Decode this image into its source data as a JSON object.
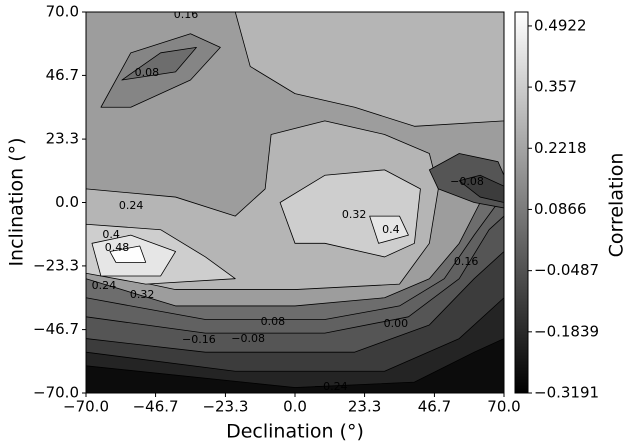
{
  "chart_data": {
    "type": "contour",
    "xlabel": "Declination (°)",
    "ylabel": "Inclination (°)",
    "colorbar_label": "Correlation",
    "colormap": "gray",
    "xlim": [
      -70,
      70
    ],
    "ylim": [
      -70,
      70
    ],
    "xticks": [
      {
        "value": -70,
        "label": "−70.0"
      },
      {
        "value": -46.7,
        "label": "−46.7"
      },
      {
        "value": -23.3,
        "label": "−23.3"
      },
      {
        "value": 0,
        "label": "0.0"
      },
      {
        "value": 23.3,
        "label": "23.3"
      },
      {
        "value": 46.7,
        "label": "46.7"
      },
      {
        "value": 70,
        "label": "70.0"
      }
    ],
    "yticks": [
      {
        "value": -70,
        "label": "−70.0"
      },
      {
        "value": -46.7,
        "label": "−46.7"
      },
      {
        "value": -23.3,
        "label": "−23.3"
      },
      {
        "value": 0,
        "label": "0.0"
      },
      {
        "value": 23.3,
        "label": "23.3"
      },
      {
        "value": 46.7,
        "label": "46.7"
      },
      {
        "value": 70,
        "label": "70.0"
      }
    ],
    "clim": [
      -0.3191,
      0.523
    ],
    "cticks": [
      {
        "value": -0.3191,
        "label": "−0.3191"
      },
      {
        "value": -0.1839,
        "label": "−0.1839"
      },
      {
        "value": -0.0487,
        "label": "−0.0487"
      },
      0.0866,
      0.357,
      0.2218,
      0.4922
    ],
    "regions": [
      {
        "level": 0.2,
        "points": [
          [
            -70,
            70
          ],
          [
            70,
            70
          ],
          [
            70,
            -70
          ],
          [
            -70,
            -70
          ]
        ]
      },
      {
        "level": 0.28,
        "points": [
          [
            -20,
            70
          ],
          [
            70,
            70
          ],
          [
            70,
            30
          ],
          [
            40,
            28
          ],
          [
            20,
            35
          ],
          [
            0,
            40
          ],
          [
            -15,
            50
          ]
        ]
      },
      {
        "level": 0.12,
        "points": [
          [
            -65,
            35
          ],
          [
            -55,
            55
          ],
          [
            -35,
            62
          ],
          [
            -25,
            57
          ],
          [
            -35,
            45
          ],
          [
            -55,
            35
          ]
        ]
      },
      {
        "level": 0.04,
        "points": [
          [
            -58,
            45
          ],
          [
            -45,
            55
          ],
          [
            -33,
            57
          ],
          [
            -40,
            48
          ]
        ]
      },
      {
        "level": 0.28,
        "points": [
          [
            -70,
            5
          ],
          [
            -40,
            2
          ],
          [
            -20,
            -5
          ],
          [
            -10,
            5
          ],
          [
            -8,
            25
          ],
          [
            10,
            30
          ],
          [
            30,
            25
          ],
          [
            45,
            18
          ],
          [
            48,
            5
          ],
          [
            45,
            -15
          ],
          [
            35,
            -30
          ],
          [
            0,
            -32
          ],
          [
            -40,
            -32
          ],
          [
            -70,
            -25
          ]
        ]
      },
      {
        "level": 0.36,
        "points": [
          [
            -70,
            -8
          ],
          [
            -45,
            -10
          ],
          [
            -30,
            -20
          ],
          [
            -20,
            -28
          ],
          [
            -50,
            -30
          ],
          [
            -70,
            -26
          ]
        ]
      },
      {
        "level": 0.36,
        "points": [
          [
            -5,
            0
          ],
          [
            10,
            10
          ],
          [
            30,
            12
          ],
          [
            42,
            5
          ],
          [
            40,
            -15
          ],
          [
            30,
            -20
          ],
          [
            10,
            -15
          ],
          [
            0,
            -15
          ]
        ]
      },
      {
        "level": 0.44,
        "points": [
          [
            -68,
            -15
          ],
          [
            -55,
            -12
          ],
          [
            -40,
            -18
          ],
          [
            -45,
            -27
          ],
          [
            -65,
            -27
          ]
        ]
      },
      {
        "level": 0.44,
        "points": [
          [
            25,
            -5
          ],
          [
            35,
            -5
          ],
          [
            38,
            -12
          ],
          [
            28,
            -15
          ]
        ]
      },
      {
        "level": 0.52,
        "points": [
          [
            -62,
            -18
          ],
          [
            -52,
            -16
          ],
          [
            -50,
            -22
          ],
          [
            -60,
            -22
          ]
        ]
      },
      {
        "level": 0.04,
        "points": [
          [
            -70,
            -28
          ],
          [
            -40,
            -38
          ],
          [
            0,
            -38
          ],
          [
            30,
            -35
          ],
          [
            45,
            -28
          ],
          [
            55,
            -15
          ],
          [
            62,
            0
          ],
          [
            70,
            10
          ],
          [
            70,
            -70
          ],
          [
            -70,
            -70
          ]
        ]
      },
      {
        "level": 0.0,
        "points": [
          [
            -70,
            -35
          ],
          [
            -30,
            -43
          ],
          [
            10,
            -43
          ],
          [
            35,
            -38
          ],
          [
            50,
            -28
          ],
          [
            60,
            -12
          ],
          [
            68,
            0
          ],
          [
            70,
            5
          ],
          [
            70,
            -70
          ],
          [
            -70,
            -70
          ]
        ]
      },
      {
        "level": -0.04,
        "points": [
          [
            -70,
            -42
          ],
          [
            -30,
            -48
          ],
          [
            10,
            -48
          ],
          [
            38,
            -42
          ],
          [
            55,
            -28
          ],
          [
            65,
            -10
          ],
          [
            70,
            -5
          ],
          [
            70,
            -70
          ],
          [
            -70,
            -70
          ]
        ]
      },
      {
        "level": -0.12,
        "points": [
          [
            -70,
            -50
          ],
          [
            -30,
            -55
          ],
          [
            20,
            -55
          ],
          [
            45,
            -45
          ],
          [
            60,
            -28
          ],
          [
            70,
            -18
          ],
          [
            70,
            -70
          ],
          [
            -70,
            -70
          ]
        ]
      },
      {
        "level": -0.2,
        "points": [
          [
            -70,
            -55
          ],
          [
            -20,
            -62
          ],
          [
            30,
            -62
          ],
          [
            55,
            -50
          ],
          [
            70,
            -35
          ],
          [
            70,
            -70
          ],
          [
            -70,
            -70
          ]
        ]
      },
      {
        "level": -0.28,
        "points": [
          [
            -70,
            -60
          ],
          [
            0,
            -68
          ],
          [
            40,
            -66
          ],
          [
            60,
            -55
          ],
          [
            70,
            -50
          ],
          [
            70,
            -70
          ],
          [
            -70,
            -70
          ]
        ]
      },
      {
        "level": -0.04,
        "points": [
          [
            45,
            12
          ],
          [
            55,
            18
          ],
          [
            68,
            15
          ],
          [
            70,
            10
          ],
          [
            70,
            -2
          ],
          [
            60,
            0
          ],
          [
            48,
            5
          ]
        ]
      },
      {
        "level": -0.12,
        "points": [
          [
            55,
            8
          ],
          [
            62,
            10
          ],
          [
            70,
            6
          ],
          [
            70,
            0
          ],
          [
            62,
            2
          ]
        ]
      }
    ],
    "contour_labels": [
      {
        "level": 0.16,
        "x": -36.5,
        "y": 68.9
      },
      {
        "level": 0.08,
        "x": -49.6,
        "y": 47.6
      },
      {
        "level": 0.24,
        "x": -54.9,
        "y": -1.3
      },
      {
        "level": 0.4,
        "x": -61.6,
        "y": -12.0
      },
      {
        "level": 0.48,
        "x": -59.6,
        "y": -16.7
      },
      {
        "level": 0.32,
        "x": 19.8,
        "y": -4.6
      },
      {
        "level": 0.4,
        "x": 32.1,
        "y": -10.1
      },
      {
        "level": -0.08,
        "label": "−0.08",
        "x": 57.6,
        "y": 7.5
      },
      {
        "level": 0.16,
        "x": 57.3,
        "y": -21.9
      },
      {
        "level": 0.24,
        "x": -64,
        "y": -30.7
      },
      {
        "level": 0.32,
        "x": -51.2,
        "y": -34
      },
      {
        "level": 0.08,
        "x": -7.4,
        "y": -43.9
      },
      {
        "level": 0.0,
        "label": "0.00",
        "x": 33.8,
        "y": -44.7
      },
      {
        "level": -0.16,
        "label": "−0.16",
        "x": -32.2,
        "y": -50.5
      },
      {
        "level": -0.08,
        "label": "−0.08",
        "x": -15.7,
        "y": -50.2
      },
      {
        "level": -0.24,
        "label": "−0.24",
        "x": 12,
        "y": -67.8
      }
    ]
  }
}
